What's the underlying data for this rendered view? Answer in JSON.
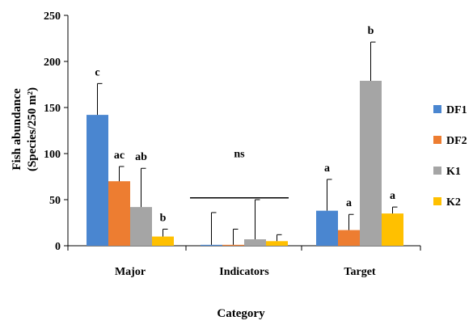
{
  "chart_data": {
    "type": "bar",
    "xlabel": "Category",
    "ylabel_line1": "Fish abundance",
    "ylabel_line2": "(Species/250 m²)",
    "ylim": [
      0,
      250
    ],
    "yticks": [
      0,
      50,
      100,
      150,
      200,
      250
    ],
    "categories": [
      "Major",
      "Indicators",
      "Target"
    ],
    "legend_position": "right",
    "series": [
      {
        "name": "DF1",
        "color": "#4a86d0",
        "values": [
          142,
          1,
          38
        ],
        "errors": [
          34,
          35,
          34
        ]
      },
      {
        "name": "DF2",
        "color": "#ed7d31",
        "values": [
          70,
          1,
          17
        ],
        "errors": [
          16,
          17,
          17
        ]
      },
      {
        "name": "K1",
        "color": "#a5a5a5",
        "values": [
          42,
          7,
          179
        ],
        "errors": [
          42,
          43,
          42
        ]
      },
      {
        "name": "K2",
        "color": "#ffc000",
        "values": [
          10,
          5,
          35
        ],
        "errors": [
          8,
          7,
          7
        ]
      }
    ],
    "significance": [
      [
        "c",
        "ac",
        "ab",
        "b"
      ],
      [],
      [
        "a",
        "a",
        "b",
        "a"
      ]
    ],
    "group_annotation": {
      "category": "Indicators",
      "label": "ns",
      "line_value": 52
    }
  }
}
